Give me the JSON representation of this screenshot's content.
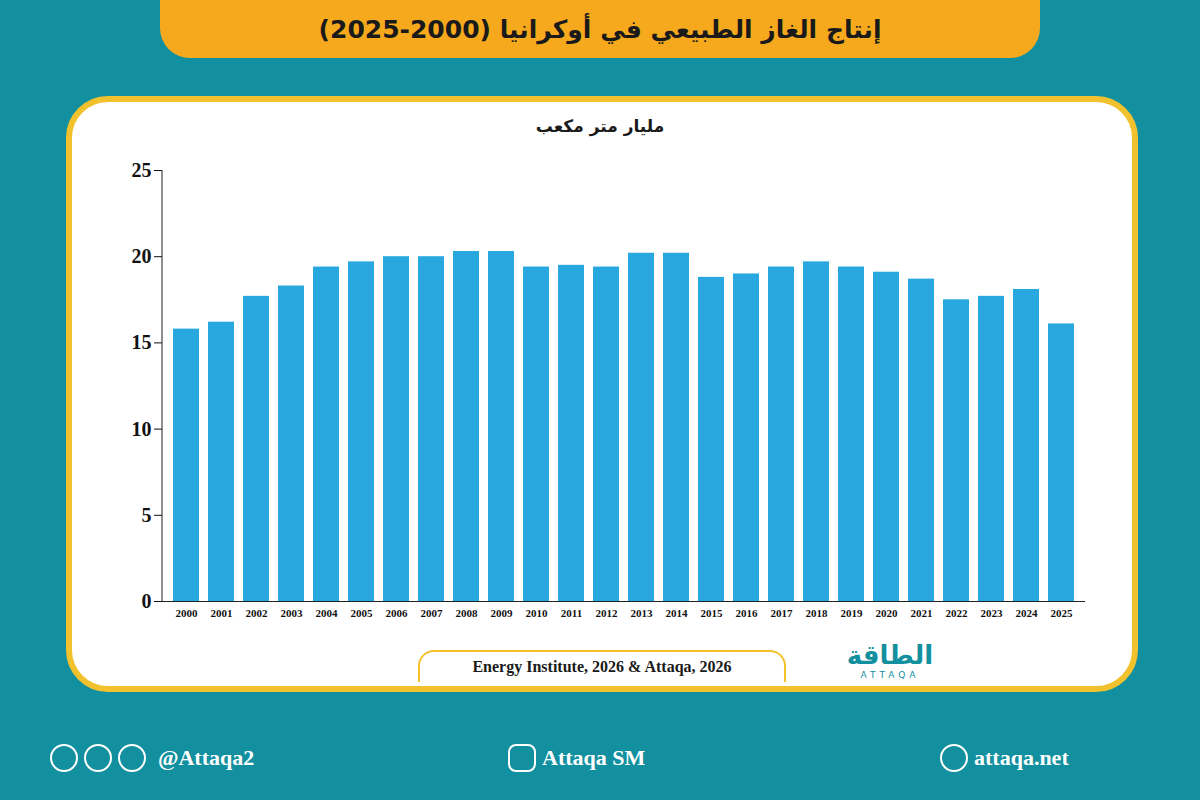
{
  "chart_data": {
    "type": "bar",
    "title": "إنتاج الغاز الطبيعي في أوكرانيا (2000-2025)",
    "y_label": "مليار متر مكعب",
    "categories": [
      "2000",
      "2001",
      "2002",
      "2003",
      "2004",
      "2005",
      "2006",
      "2007",
      "2008",
      "2009",
      "2010",
      "2011",
      "2012",
      "2013",
      "2014",
      "2015",
      "2016",
      "2017",
      "2018",
      "2019",
      "2020",
      "2021",
      "2022",
      "2023",
      "2024",
      "2025"
    ],
    "values": [
      15.8,
      16.2,
      17.7,
      18.3,
      19.4,
      19.7,
      20.0,
      20.0,
      20.3,
      20.3,
      19.4,
      19.5,
      19.4,
      20.2,
      20.2,
      18.8,
      19.0,
      19.4,
      19.7,
      19.4,
      19.1,
      18.7,
      17.5,
      17.7,
      18.1,
      16.1
    ],
    "color": "#29a8e0",
    "ylim": [
      0,
      25
    ],
    "yticks": [
      0,
      5,
      10,
      15,
      20,
      25
    ],
    "grid": false,
    "source": "Energy Institute, 2026 & Attaqa, 2026",
    "logo": {
      "arabic": "الطاقة",
      "latin": "ATTAQA"
    },
    "footer": {
      "social": "@Attaqa2",
      "youtube": "Attaqa SM",
      "website": "attaqa.net"
    }
  }
}
